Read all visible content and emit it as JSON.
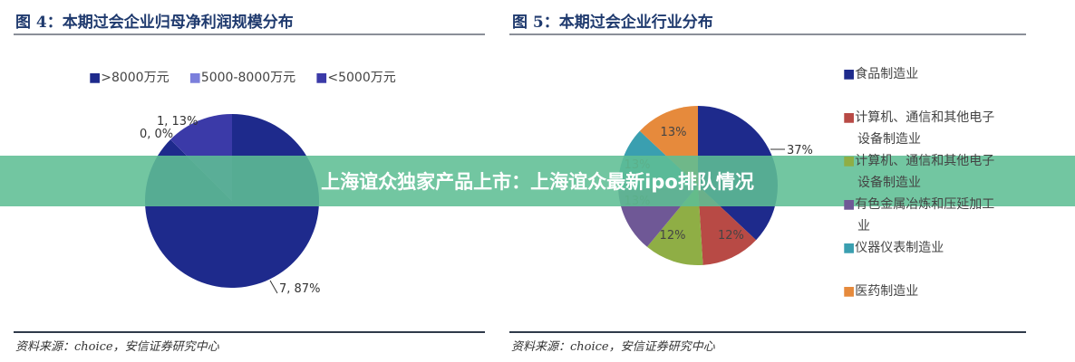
{
  "chart_data": [
    {
      "type": "pie",
      "title": "图 4：本期过会企业归母净利润规模分布",
      "categories": [
        ">8000万元",
        "5000-8000万元",
        "<5000万元"
      ],
      "values": [
        7,
        0,
        1
      ],
      "data_labels": [
        "7, 87%",
        "0, 0%",
        "1, 13%"
      ],
      "colors": [
        "#1e2a8c",
        "#7b7fdc",
        "#3b3aa8"
      ],
      "legend": "top",
      "source": "资料来源：choice，安信证券研究中心"
    },
    {
      "type": "pie",
      "title": "图 5：本期过会企业行业分布",
      "categories": [
        "食品制造业",
        "计算机、通信和其他电子设备制造业",
        "计算机、通信和其他电子设备制造业",
        "有色金属冶炼和压延加工业",
        "仪器仪表制造业",
        "医药制造业"
      ],
      "values": [
        37,
        12,
        12,
        13,
        13,
        13
      ],
      "data_labels": [
        "37%",
        "12%",
        "12%",
        "13%",
        "13%",
        "13%"
      ],
      "colors": [
        "#1e2a8c",
        "#b84a45",
        "#8fae45",
        "#6f5896",
        "#3a9fb0",
        "#e68a3c"
      ],
      "legend": "right",
      "source": "资料来源：choice，安信证券研究中心"
    }
  ],
  "banner": {
    "text": "上海谊众独家产品上市：上海谊众最新ipo排队情况"
  }
}
